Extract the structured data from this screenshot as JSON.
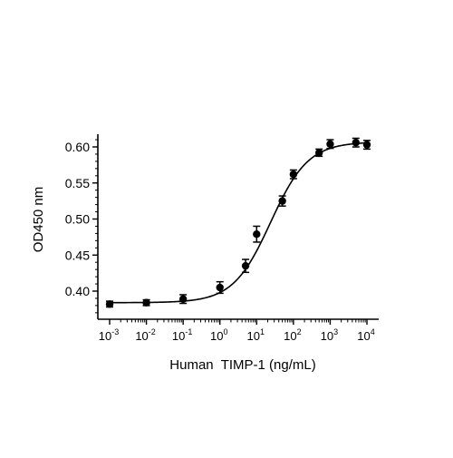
{
  "chart_data": {
    "type": "scatter",
    "xlabel": "Human  TIMP-1 (ng/mL)",
    "ylabel": "OD450 nm",
    "x_scale": "log",
    "xlim": [
      0.001,
      10000
    ],
    "ylim": [
      0.37,
      0.62
    ],
    "x_ticks": [
      {
        "value": 0.001,
        "base": "10",
        "exp": "-3"
      },
      {
        "value": 0.01,
        "base": "10",
        "exp": "-2"
      },
      {
        "value": 0.1,
        "base": "10",
        "exp": "-1"
      },
      {
        "value": 1,
        "base": "10",
        "exp": "0"
      },
      {
        "value": 10,
        "base": "10",
        "exp": "1"
      },
      {
        "value": 100,
        "base": "10",
        "exp": "2"
      },
      {
        "value": 1000,
        "base": "10",
        "exp": "3"
      },
      {
        "value": 10000,
        "base": "10",
        "exp": "4"
      }
    ],
    "y_ticks": [
      {
        "value": 0.4,
        "label": "0.40"
      },
      {
        "value": 0.45,
        "label": "0.45"
      },
      {
        "value": 0.5,
        "label": "0.50"
      },
      {
        "value": 0.55,
        "label": "0.55"
      },
      {
        "value": 0.6,
        "label": "0.60"
      }
    ],
    "grid": false,
    "legend": "none",
    "points": [
      {
        "x": 0.001,
        "y": 0.382,
        "err": 0.004
      },
      {
        "x": 0.01,
        "y": 0.384,
        "err": 0.004
      },
      {
        "x": 0.1,
        "y": 0.389,
        "err": 0.006
      },
      {
        "x": 1,
        "y": 0.405,
        "err": 0.008
      },
      {
        "x": 5,
        "y": 0.435,
        "err": 0.009
      },
      {
        "x": 10,
        "y": 0.479,
        "err": 0.011
      },
      {
        "x": 50,
        "y": 0.525,
        "err": 0.007
      },
      {
        "x": 100,
        "y": 0.562,
        "err": 0.006
      },
      {
        "x": 500,
        "y": 0.592,
        "err": 0.005
      },
      {
        "x": 1000,
        "y": 0.604,
        "err": 0.006
      },
      {
        "x": 5000,
        "y": 0.606,
        "err": 0.006
      },
      {
        "x": 10000,
        "y": 0.603,
        "err": 0.006
      }
    ],
    "fit": {
      "model": "4PL",
      "bottom": 0.384,
      "top": 0.607,
      "ec50": 24,
      "hill": 0.85
    },
    "colors": {
      "marker": "#000000",
      "line": "#000000",
      "axis": "#000000"
    }
  }
}
